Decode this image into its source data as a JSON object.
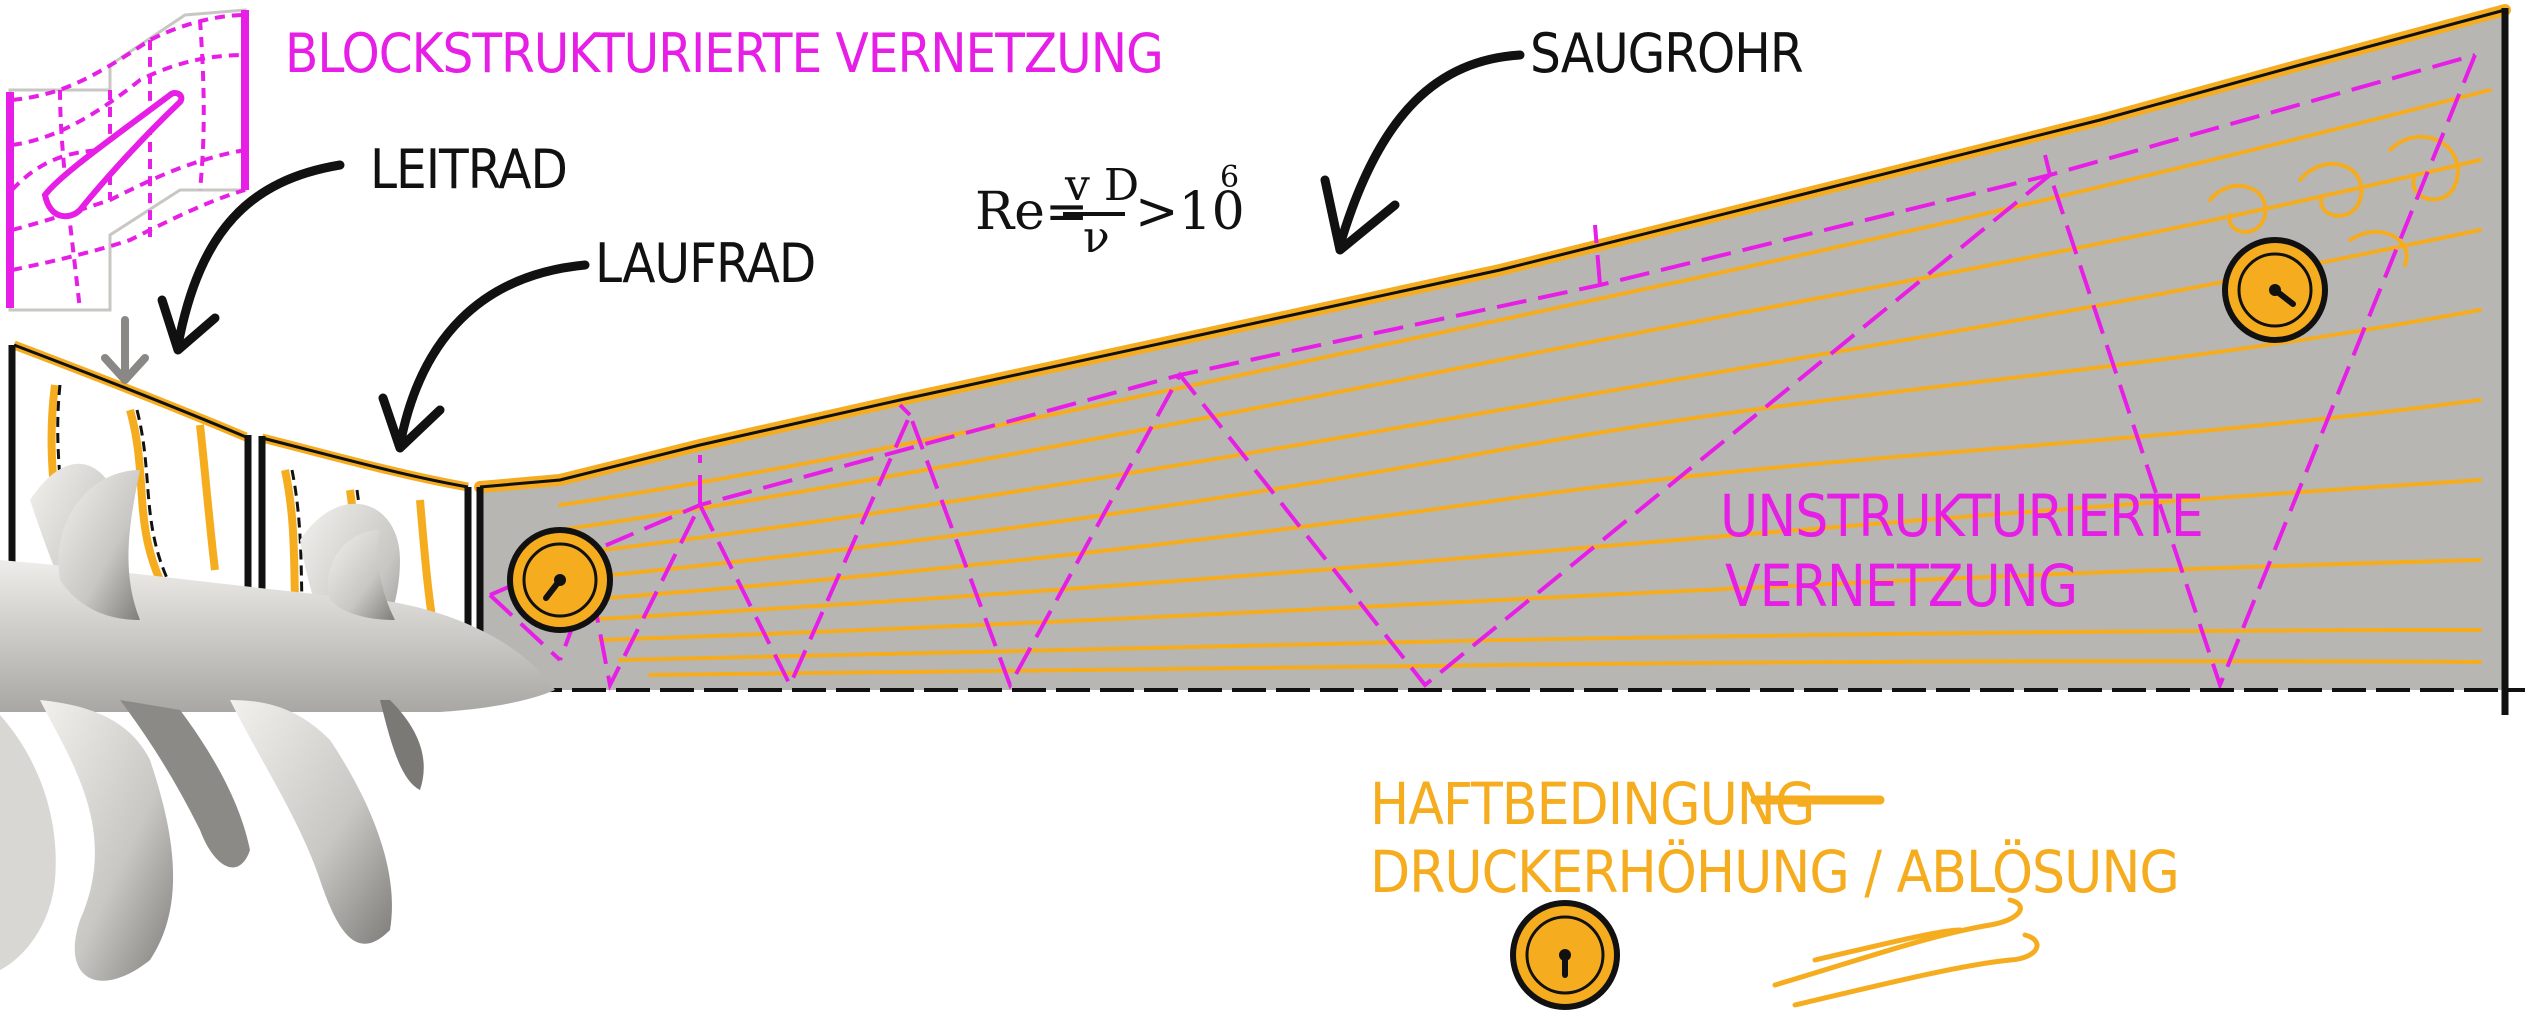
{
  "labels": {
    "block_mesh": "BLOCKSTRUKTURIERTE VERNETZUNG",
    "leitrad": "LEITRAD",
    "laufrad": "LAUFRAD",
    "saugrohr": "SAUGROHR",
    "unstructured_line1": "UNSTRUKTURIERTE",
    "unstructured_line2": "VERNETZUNG",
    "haftbedingung": "HAFTBEDINGUNG",
    "druckerhoehung": "DRUCKERHÖHUNG / ABLÖSUNG"
  },
  "formula": {
    "prefix": "Re=",
    "numerator": "v D",
    "denominator": "ν",
    "relation": ">10",
    "exponent": "6"
  },
  "colors": {
    "pink": "#e61ee6",
    "orange": "#f5ad1f",
    "gray_domain": "#b8b6b3",
    "black": "#111111"
  },
  "icons": [
    "pressure-gauge-icon",
    "flow-wind-icon"
  ]
}
